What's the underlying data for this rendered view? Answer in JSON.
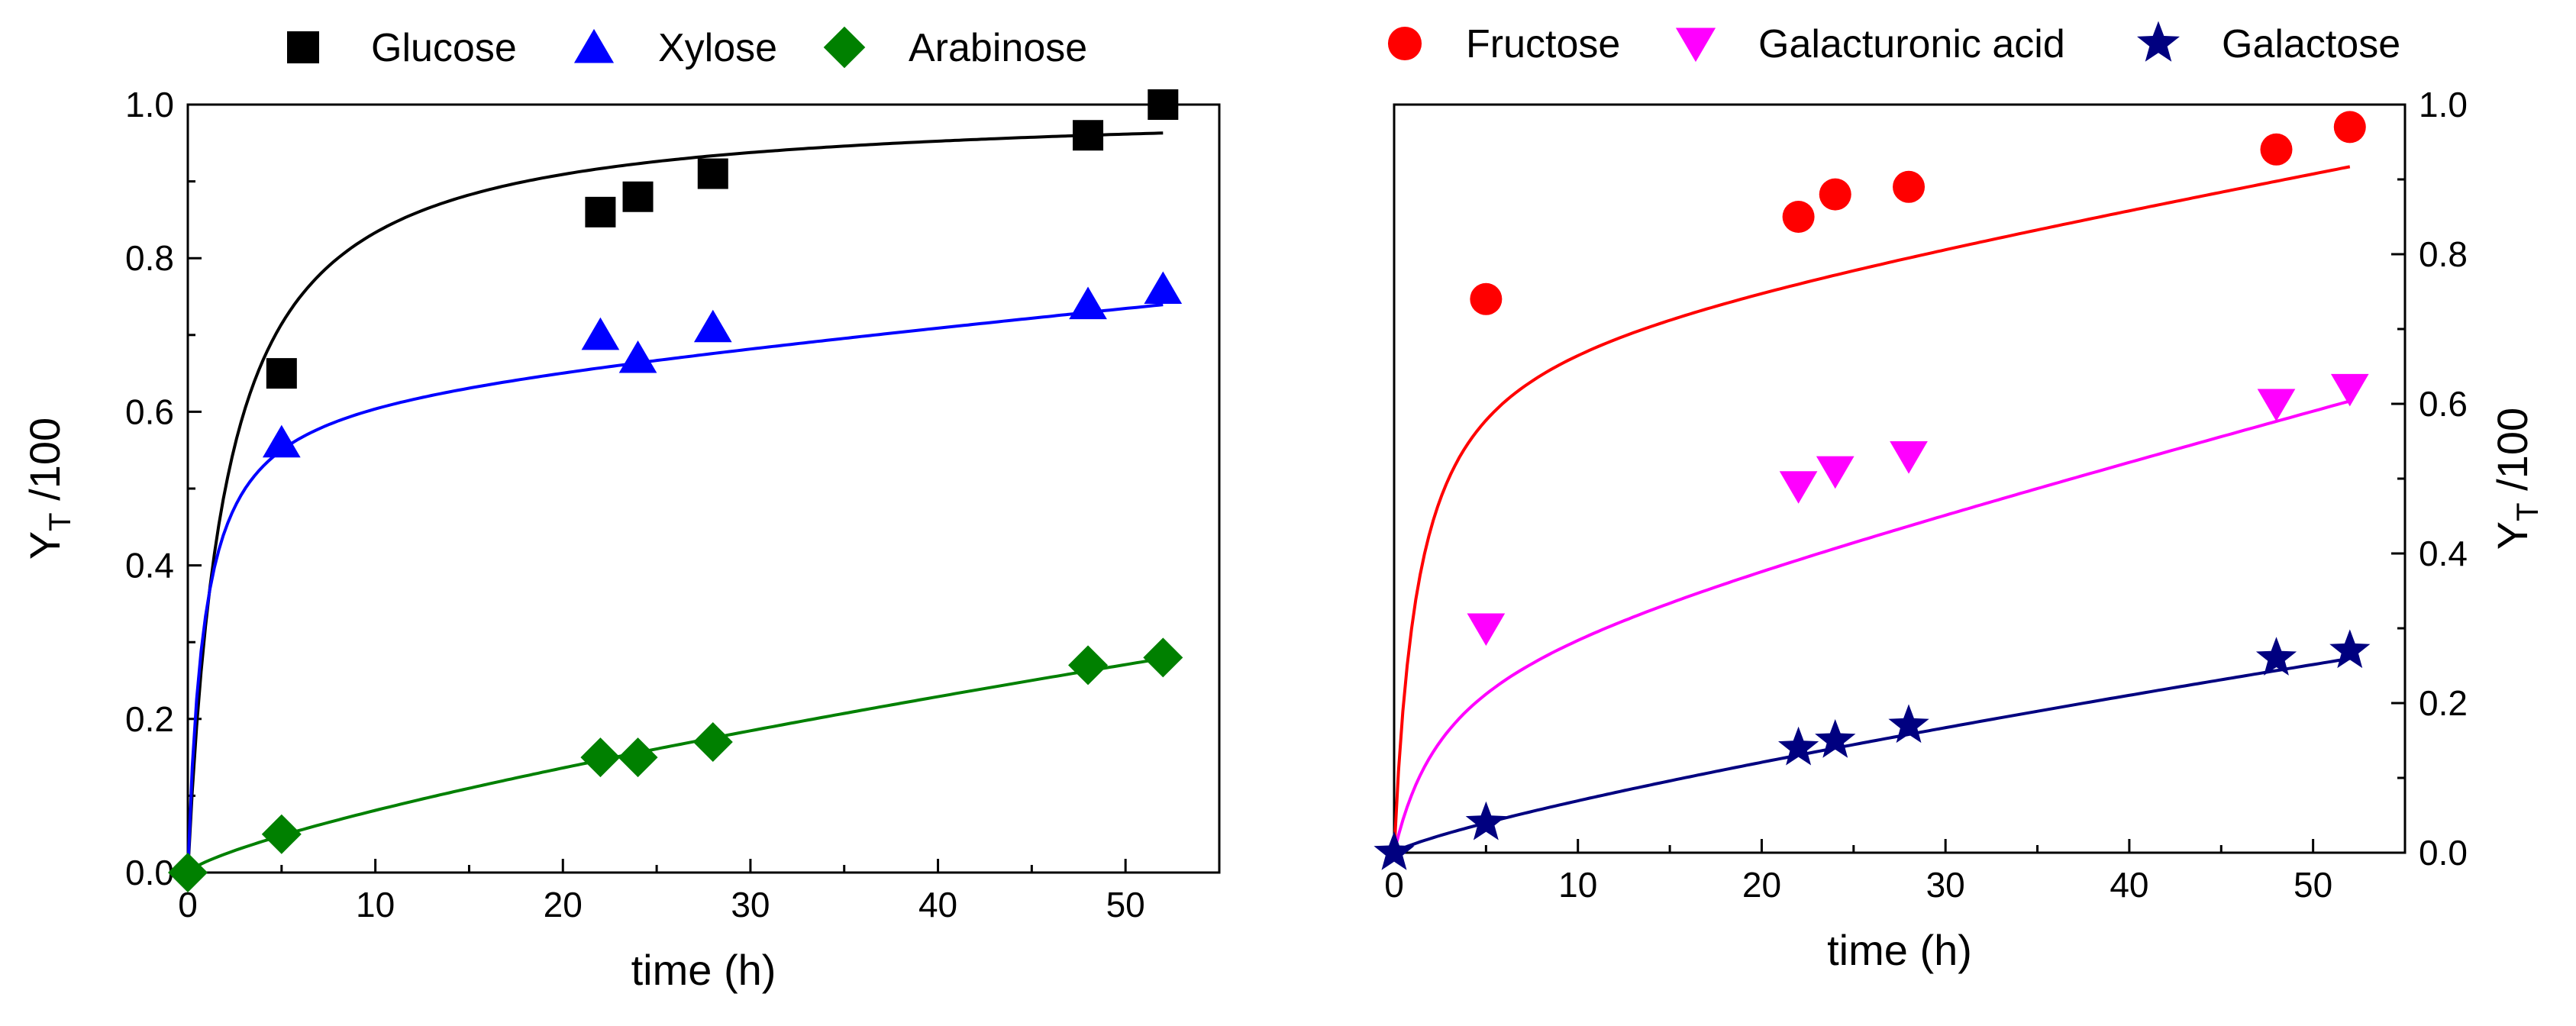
{
  "chart_data": [
    {
      "type": "scatter",
      "panel": "left",
      "xlabel": "time (h)",
      "ylabel_main": "Y",
      "ylabel_sub": "T",
      "ylabel_rest": " /100",
      "y_axis_side": "left",
      "xlim": [
        0,
        55
      ],
      "ylim": [
        0,
        1.0
      ],
      "x_ticks": [
        "0",
        "10",
        "20",
        "30",
        "40",
        "50"
      ],
      "y_ticks": [
        "0.0",
        "0.2",
        "0.4",
        "0.6",
        "0.8",
        "1.0"
      ],
      "legend_position": "top",
      "series": [
        {
          "name": "Glucose",
          "marker": "square",
          "color": "#000000",
          "x": [
            5,
            22,
            24,
            28,
            48,
            52
          ],
          "y": [
            0.65,
            0.86,
            0.88,
            0.91,
            0.96,
            1.0
          ],
          "fit": {
            "a": 1.0,
            "b": 2.0,
            "c": 0.0
          }
        },
        {
          "name": "Xylose",
          "marker": "triangle-up",
          "color": "#0000ff",
          "x": [
            5,
            22,
            24,
            28,
            48,
            52
          ],
          "y": [
            0.56,
            0.7,
            0.67,
            0.71,
            0.74,
            0.76
          ],
          "fit": {
            "a": 0.63,
            "b": 0.85,
            "c": 0.0023
          }
        },
        {
          "name": "Arabinose",
          "marker": "diamond",
          "color": "#008000",
          "x": [
            0,
            5,
            22,
            24,
            28,
            48,
            52
          ],
          "y": [
            0.0,
            0.05,
            0.15,
            0.15,
            0.17,
            0.27,
            0.28
          ],
          "fit_power": {
            "k": 0.0144,
            "n": 0.75
          }
        }
      ]
    },
    {
      "type": "scatter",
      "panel": "right",
      "xlabel": "time (h)",
      "ylabel_main": "Y",
      "ylabel_sub": "T",
      "ylabel_rest": " /100",
      "y_axis_side": "right",
      "xlim": [
        0,
        55
      ],
      "ylim": [
        0,
        1.0
      ],
      "x_ticks": [
        "0",
        "10",
        "20",
        "30",
        "40",
        "50"
      ],
      "y_ticks": [
        "0.0",
        "0.2",
        "0.4",
        "0.6",
        "0.8",
        "1.0"
      ],
      "legend_position": "top",
      "series": [
        {
          "name": "Fructose",
          "marker": "circle",
          "color": "#ff0000",
          "x": [
            5,
            22,
            24,
            28,
            48,
            52
          ],
          "y": [
            0.74,
            0.85,
            0.88,
            0.89,
            0.94,
            0.97
          ],
          "fit": {
            "a": 0.7,
            "b": 1.3,
            "c": 0.0045
          }
        },
        {
          "name": "Galacturonic acid",
          "marker": "triangle-down",
          "color": "#ff00ff",
          "x": [
            5,
            22,
            24,
            28,
            48,
            52
          ],
          "y": [
            0.3,
            0.49,
            0.51,
            0.53,
            0.6,
            0.62
          ],
          "fit": {
            "a": 0.28,
            "b": 2.8,
            "c": 0.0065
          }
        },
        {
          "name": "Galactose",
          "marker": "star",
          "color": "#000080",
          "x": [
            0,
            5,
            22,
            24,
            28,
            48,
            52
          ],
          "y": [
            0.0,
            0.04,
            0.14,
            0.15,
            0.17,
            0.26,
            0.27
          ],
          "fit_power": {
            "k": 0.011,
            "n": 0.8
          }
        }
      ]
    }
  ]
}
